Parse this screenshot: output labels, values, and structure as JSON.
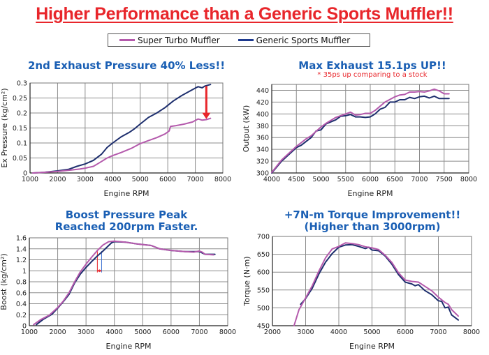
{
  "header": {
    "title": "Higher Performance than a Generic Sports Muffler!!"
  },
  "legend": {
    "items": [
      {
        "label": "Super Turbo Muffler",
        "color": "#b45aac"
      },
      {
        "label": "Generic Sports Muffler",
        "color": "#1e2f6e"
      }
    ]
  },
  "colors": {
    "super_turbo": "#b45aac",
    "generic": "#1e2f6e",
    "title_blue": "#1a5fb4",
    "accent_red": "#e8262b",
    "grid": "#8c8c8c"
  },
  "chart_data": [
    {
      "id": "exhaust",
      "type": "line",
      "title": "2nd Exhaust Pressure 40% Less!!",
      "subtitle": "",
      "xlabel": "Engine RPM",
      "ylabel": "Ex Pressure (kg/cm²)",
      "xlim": [
        1000,
        8000
      ],
      "ylim": [
        0,
        0.3
      ],
      "xticks": [
        1000,
        2000,
        3000,
        4000,
        5000,
        6000,
        7000,
        8000
      ],
      "yticks": [
        0,
        0.05,
        0.1,
        0.15,
        0.2,
        0.25,
        0.3
      ],
      "ytick_labels": [
        "0",
        "0.05",
        "0.1",
        "0.15",
        "0.2",
        "0.25",
        "0.3"
      ],
      "grid": true,
      "annotation": "red down arrow at 7400 RPM from 0.29 to 0.18",
      "series": [
        {
          "name": "Super Turbo Muffler",
          "x": [
            1100,
            1500,
            2000,
            2500,
            2800,
            3000,
            3300,
            3500,
            3800,
            4000,
            4300,
            4700,
            5000,
            5300,
            5600,
            5900,
            6050,
            6100,
            6300,
            6600,
            6900,
            7100,
            7250,
            7400,
            7550
          ],
          "y": [
            0,
            0.002,
            0.005,
            0.01,
            0.013,
            0.016,
            0.022,
            0.033,
            0.05,
            0.058,
            0.068,
            0.083,
            0.098,
            0.108,
            0.118,
            0.13,
            0.14,
            0.155,
            0.158,
            0.163,
            0.17,
            0.18,
            0.176,
            0.178,
            0.182
          ]
        },
        {
          "name": "Generic Sports Muffler",
          "x": [
            1100,
            1500,
            2000,
            2400,
            2700,
            3000,
            3300,
            3600,
            3800,
            4000,
            4300,
            4600,
            4800,
            5000,
            5300,
            5600,
            5900,
            6200,
            6500,
            6800,
            7100,
            7250,
            7350,
            7550
          ],
          "y": [
            0,
            0.002,
            0.007,
            0.012,
            0.022,
            0.03,
            0.042,
            0.063,
            0.085,
            0.1,
            0.12,
            0.135,
            0.148,
            0.163,
            0.185,
            0.2,
            0.218,
            0.24,
            0.258,
            0.273,
            0.288,
            0.284,
            0.29,
            0.295
          ]
        }
      ]
    },
    {
      "id": "output",
      "type": "line",
      "title": "Max Exhaust 15.1ps UP!!",
      "subtitle": "* 35ps up comparing to a stock",
      "xlabel": "Engine RPM",
      "ylabel": "Output (kW)",
      "xlim": [
        4000,
        8000
      ],
      "ylim": [
        300,
        450
      ],
      "xticks": [
        4000,
        4500,
        5000,
        5500,
        6000,
        6500,
        7000,
        7500,
        8000
      ],
      "yticks": [
        300,
        320,
        340,
        360,
        380,
        400,
        420,
        440
      ],
      "ytick_labels": [
        "300",
        "320",
        "340",
        "360",
        "380",
        "400",
        "420",
        "440"
      ],
      "grid": true,
      "series": [
        {
          "name": "Super Turbo Muffler",
          "x": [
            4000,
            4200,
            4500,
            4700,
            4800,
            5000,
            5100,
            5300,
            5500,
            5600,
            5700,
            5800,
            5900,
            6000,
            6100,
            6300,
            6500,
            6600,
            6700,
            6800,
            6900,
            7000,
            7100,
            7200,
            7300,
            7400,
            7500,
            7600
          ],
          "y": [
            301,
            322,
            345,
            358,
            363,
            378,
            384,
            394,
            400,
            403,
            398,
            399,
            401,
            401,
            406,
            420,
            429,
            432,
            433,
            437,
            437,
            438,
            437,
            439,
            442,
            439,
            434,
            434
          ]
        },
        {
          "name": "Generic Sports Muffler",
          "x": [
            4000,
            4200,
            4500,
            4600,
            4800,
            4900,
            5000,
            5100,
            5300,
            5400,
            5500,
            5600,
            5700,
            5800,
            5900,
            6000,
            6100,
            6200,
            6300,
            6400,
            6500,
            6600,
            6700,
            6800,
            6900,
            7000,
            7100,
            7200,
            7300,
            7400,
            7500,
            7600
          ],
          "y": [
            300,
            320,
            343,
            347,
            360,
            371,
            373,
            383,
            390,
            396,
            397,
            399,
            395,
            395,
            394,
            395,
            400,
            408,
            411,
            420,
            420,
            424,
            424,
            428,
            426,
            429,
            430,
            427,
            430,
            426,
            426,
            426
          ]
        }
      ]
    },
    {
      "id": "boost",
      "type": "line",
      "title": "Boost Pressure Peak\nReached 200rpm Faster.",
      "subtitle": "",
      "xlabel": "Engine RPM",
      "ylabel": "Boost (kg/cm²)",
      "xlim": [
        1000,
        8000
      ],
      "ylim": [
        0,
        1.6
      ],
      "xticks": [
        1000,
        2000,
        3000,
        4000,
        5000,
        6000,
        7000,
        8000
      ],
      "yticks": [
        0,
        0.2,
        0.4,
        0.6,
        0.8,
        1,
        1.2,
        1.4,
        1.6
      ],
      "ytick_labels": [
        "0",
        "0.2",
        "0.4",
        "0.6",
        "0.8",
        "1",
        "1.2",
        "1.4",
        "1.6"
      ],
      "grid": true,
      "annotation": "markers at 3400 RPM (Super Turbo) and 3550 RPM (Generic) with red double arrow",
      "markers": [
        {
          "x": 3400,
          "color": "#e8262b"
        },
        {
          "x": 3550,
          "color": "#3a6fd0"
        }
      ],
      "series": [
        {
          "name": "Super Turbo Muffler",
          "x": [
            1150,
            1400,
            1700,
            2000,
            2200,
            2400,
            2600,
            2800,
            3000,
            3200,
            3400,
            3600,
            3800,
            4000,
            4400,
            4800,
            5300,
            5600,
            6000,
            6500,
            6800,
            7000,
            7100,
            7200,
            7500
          ],
          "y": [
            0.02,
            0.11,
            0.19,
            0.33,
            0.45,
            0.6,
            0.8,
            0.98,
            1.12,
            1.25,
            1.37,
            1.47,
            1.53,
            1.54,
            1.52,
            1.49,
            1.46,
            1.4,
            1.37,
            1.35,
            1.34,
            1.36,
            1.34,
            1.3,
            1.29
          ]
        },
        {
          "name": "Generic Sports Muffler",
          "x": [
            1250,
            1500,
            1800,
            2000,
            2200,
            2400,
            2600,
            2800,
            3000,
            3200,
            3400,
            3600,
            3800,
            3900,
            4000,
            4400,
            4800,
            5300,
            5600,
            6000,
            6500,
            7000,
            7200,
            7550
          ],
          "y": [
            0.02,
            0.12,
            0.21,
            0.32,
            0.44,
            0.57,
            0.78,
            0.94,
            1.06,
            1.17,
            1.27,
            1.36,
            1.46,
            1.51,
            1.53,
            1.52,
            1.49,
            1.46,
            1.4,
            1.37,
            1.35,
            1.35,
            1.3,
            1.3
          ]
        }
      ]
    },
    {
      "id": "torque",
      "type": "line",
      "title": "+7N-m Torque Improvement!!\n(Higher than 3000rpm)",
      "subtitle": "",
      "xlabel": "Engine RPM",
      "ylabel": "Torque (N·m)",
      "xlim": [
        2000,
        8000
      ],
      "ylim": [
        450,
        700
      ],
      "xticks": [
        2000,
        3000,
        4000,
        5000,
        6000,
        7000,
        8000
      ],
      "yticks": [
        450,
        500,
        550,
        600,
        650,
        700
      ],
      "ytick_labels": [
        "450",
        "500",
        "550",
        "600",
        "650",
        "700"
      ],
      "grid": true,
      "series": [
        {
          "name": "Super Turbo Muffler",
          "x": [
            2650,
            2800,
            3000,
            3200,
            3400,
            3600,
            3800,
            4000,
            4200,
            4400,
            4600,
            4800,
            5000,
            5200,
            5400,
            5600,
            5800,
            6000,
            6200,
            6400,
            6600,
            6800,
            7000,
            7200,
            7300,
            7400,
            7600
          ],
          "y": [
            450,
            495,
            528,
            562,
            603,
            640,
            665,
            672,
            682,
            680,
            677,
            671,
            668,
            663,
            647,
            627,
            598,
            578,
            574,
            572,
            560,
            548,
            530,
            515,
            510,
            495,
            477
          ]
        },
        {
          "name": "Generic Sports Muffler",
          "x": [
            2850,
            3000,
            3200,
            3400,
            3600,
            3800,
            4000,
            4200,
            4400,
            4600,
            4800,
            4900,
            5000,
            5200,
            5400,
            5600,
            5800,
            6000,
            6200,
            6300,
            6400,
            6600,
            6800,
            7000,
            7100,
            7200,
            7300,
            7400,
            7600
          ],
          "y": [
            510,
            526,
            555,
            595,
            628,
            652,
            670,
            676,
            677,
            672,
            666,
            670,
            662,
            660,
            645,
            622,
            593,
            572,
            567,
            562,
            565,
            548,
            537,
            520,
            518,
            500,
            502,
            480,
            466
          ]
        }
      ]
    }
  ]
}
